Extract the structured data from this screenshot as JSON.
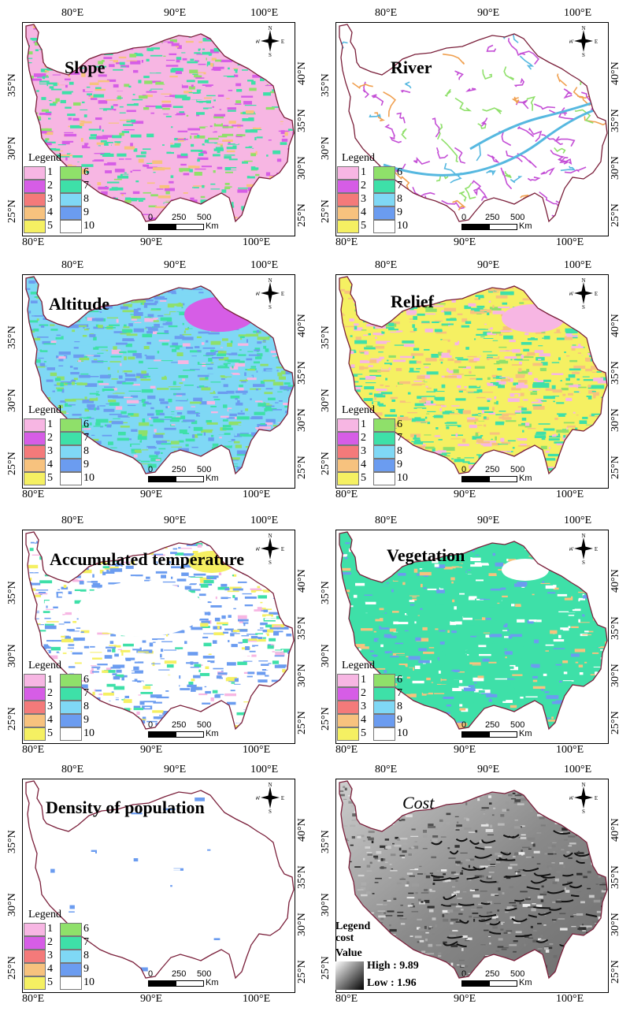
{
  "lon_labels": [
    "80°E",
    "90°E",
    "100°E"
  ],
  "lat_labels_left": [
    "35°N",
    "30°N",
    "25°N"
  ],
  "lat_labels_right": [
    "40°N",
    "35°N",
    "30°N",
    "25°N"
  ],
  "legend_title": "Legend",
  "legend_items": [
    {
      "label": "1",
      "color": "#f7b6e3"
    },
    {
      "label": "2",
      "color": "#d65de6"
    },
    {
      "label": "3",
      "color": "#f47a7a"
    },
    {
      "label": "4",
      "color": "#f7c27e"
    },
    {
      "label": "5",
      "color": "#f5f062"
    },
    {
      "label": "6",
      "color": "#8fe06a"
    },
    {
      "label": "7",
      "color": "#3ee0a8"
    },
    {
      "label": "8",
      "color": "#7fd8f5"
    },
    {
      "label": "9",
      "color": "#6b9cf0"
    },
    {
      "label": "10",
      "color": "#ffffff"
    }
  ],
  "scale_bar": {
    "ticks": [
      "0",
      "250",
      "500"
    ],
    "unit": "Km"
  },
  "compass": {
    "n": "N",
    "s": "S",
    "e": "E",
    "w": "W"
  },
  "panels": [
    {
      "id": "slope",
      "title": "Slope"
    },
    {
      "id": "river",
      "title": "River"
    },
    {
      "id": "altitude",
      "title": "Altitude"
    },
    {
      "id": "relief",
      "title": "Relief"
    },
    {
      "id": "accumulated-temperature",
      "title": "Accumulated temperature"
    },
    {
      "id": "vegetation",
      "title": "Vegetation"
    },
    {
      "id": "density-of-population",
      "title": "Density of population"
    },
    {
      "id": "cost",
      "title": "Cost"
    }
  ],
  "cost_legend": {
    "line1": "Legend",
    "line2": "cost",
    "value_label": "Value",
    "high": "High : 9.89",
    "low": "Low : 1.96"
  }
}
